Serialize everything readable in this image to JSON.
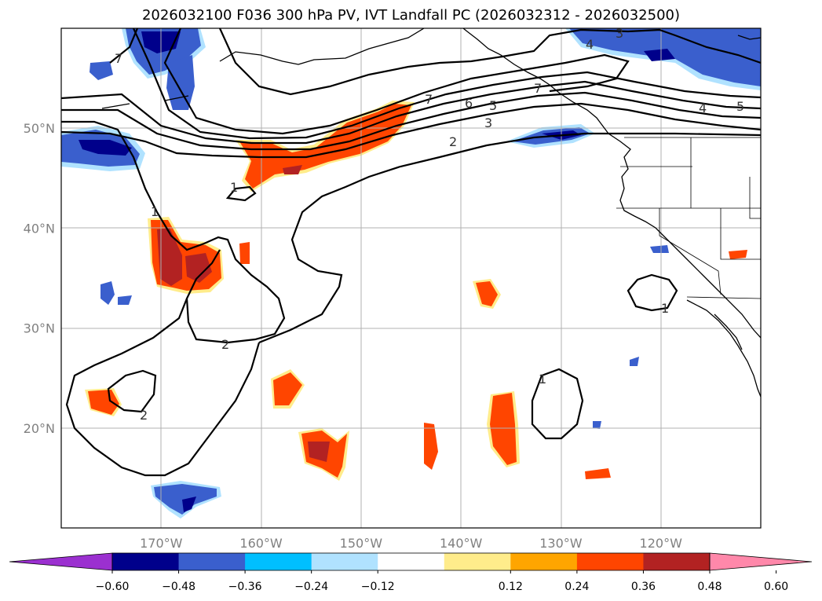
{
  "title": "2026032100 F036 300 hPa PV, IVT Landfall PC (2026032312 - 2026032500)",
  "map": {
    "lon_labels": [
      {
        "lon": -170,
        "label": "170°W"
      },
      {
        "lon": -160,
        "label": "160°W"
      },
      {
        "lon": -150,
        "label": "150°W"
      },
      {
        "lon": -140,
        "label": "140°W"
      },
      {
        "lon": -130,
        "label": "130°W"
      },
      {
        "lon": -120,
        "label": "120°W"
      }
    ],
    "lat_labels": [
      {
        "lat": 50,
        "label": "50°N"
      },
      {
        "lat": 40,
        "label": "40°N"
      },
      {
        "lat": 30,
        "label": "30°N"
      },
      {
        "lat": 20,
        "label": "20°N"
      }
    ],
    "extent": {
      "lon_min": -180,
      "lon_max": -110,
      "lat_min": 10,
      "lat_max": 60
    }
  },
  "colorbar": {
    "ticks": [
      "−0.60",
      "−0.48",
      "−0.36",
      "−0.24",
      "−0.12",
      "0.12",
      "0.24",
      "0.36",
      "0.48",
      "0.60"
    ],
    "colors": [
      "#9b30d0",
      "#00008b",
      "#3a5fcd",
      "#00bfff",
      "#b0e2ff",
      "#ffffff",
      "#ffec8b",
      "#ffa500",
      "#ff4500",
      "#b22222",
      "#ff88aa"
    ]
  },
  "contour_labels": {
    "l1": "1",
    "l2": "1",
    "l3": "1",
    "l4": "1",
    "l5": "1",
    "l6": "2",
    "l7": "2",
    "l8": "2",
    "l9": "3",
    "l10": "3",
    "l11": "4",
    "l12": "4",
    "l13": "5",
    "l14": "5",
    "l15": "5",
    "l16": "6",
    "l17": "7",
    "l18": "7",
    "l19": "7"
  }
}
